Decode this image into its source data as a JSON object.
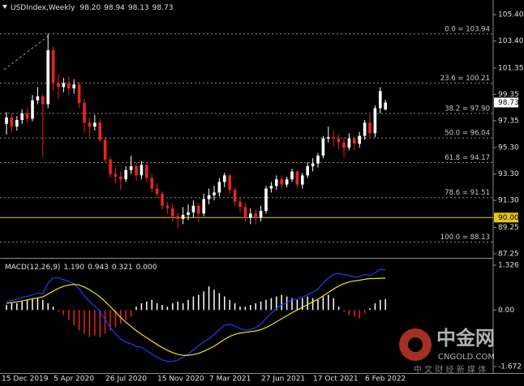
{
  "chart_data": [
    {
      "type": "candlestick",
      "symbol": "USDIndex,Weekly",
      "ohlc_labels": [
        "98.20",
        "98.94",
        "98.13",
        "98.73"
      ],
      "categories": [
        "15 Dec 2019",
        null,
        null,
        null,
        null,
        null,
        null,
        null,
        null,
        null,
        "5 Apr 2020",
        null,
        null,
        null,
        null,
        null,
        null,
        null,
        null,
        null,
        "26 Jul 2020",
        null,
        null,
        null,
        null,
        null,
        null,
        null,
        null,
        null,
        "15 Nov 2020",
        null,
        null,
        null,
        null,
        null,
        null,
        null,
        null,
        null,
        "7 Mar 2021",
        null,
        null,
        null,
        null,
        null,
        null,
        null,
        null,
        null,
        "27 Jun 2021",
        null,
        null,
        null,
        null,
        null,
        null,
        null,
        null,
        null,
        "17 Oct 2021",
        null,
        null,
        null,
        null,
        null,
        null,
        null,
        null,
        null,
        "6 Feb 2022",
        null,
        null,
        null
      ],
      "open": [
        97.1,
        97.6,
        96.9,
        97.4,
        97.9,
        97.5,
        98.9,
        99.2,
        98.6,
        102.7,
        100.2,
        99.9,
        100.2,
        99.8,
        100.1,
        98.7,
        97.2,
        96.9,
        97.2,
        95.9,
        94.4,
        93.3,
        93.1,
        92.9,
        93.6,
        93.9,
        93.2,
        94.0,
        93.0,
        92.2,
        91.8,
        90.9,
        90.7,
        90.1,
        89.9,
        90.2,
        90.4,
        90.9,
        90.3,
        91.4,
        91.7,
        91.9,
        92.7,
        93.2,
        92.1,
        91.2,
        90.8,
        90.0,
        90.3,
        90.0,
        90.5,
        92.2,
        92.4,
        92.9,
        92.5,
        92.9,
        93.5,
        92.5,
        93.2,
        93.9,
        94.1,
        94.7,
        96.0,
        96.1,
        96.0,
        95.7,
        95.3,
        96.0,
        95.6,
        96.2,
        97.2,
        96.4,
        98.3,
        98.2
      ],
      "high": [
        98.0,
        97.9,
        97.7,
        98.2,
        98.3,
        99.3,
        99.9,
        99.4,
        103.96,
        103.0,
        100.9,
        100.6,
        100.7,
        100.5,
        100.3,
        99.0,
        97.6,
        97.8,
        97.5,
        96.1,
        94.6,
        93.8,
        93.5,
        93.9,
        94.7,
        94.2,
        94.3,
        94.1,
        93.3,
        92.6,
        92.0,
        91.2,
        91.0,
        90.4,
        90.8,
        91.0,
        91.3,
        91.1,
        91.8,
        92.2,
        92.4,
        93.0,
        93.4,
        93.3,
        92.3,
        91.5,
        91.1,
        90.7,
        90.6,
        90.9,
        92.4,
        92.7,
        93.2,
        93.2,
        93.1,
        93.7,
        93.6,
        93.4,
        94.2,
        94.5,
        94.9,
        96.2,
        96.9,
        96.6,
        96.3,
        96.1,
        96.4,
        96.2,
        96.5,
        97.4,
        97.8,
        98.5,
        99.9,
        98.94
      ],
      "low": [
        96.3,
        96.5,
        96.6,
        97.1,
        97.2,
        97.3,
        98.6,
        94.6,
        98.3,
        99.6,
        99.0,
        99.5,
        99.3,
        99.4,
        98.3,
        96.4,
        96.0,
        96.6,
        95.7,
        94.2,
        93.0,
        92.6,
        92.1,
        92.7,
        93.3,
        92.8,
        92.9,
        92.7,
        91.9,
        91.5,
        90.6,
        90.3,
        89.7,
        89.2,
        89.5,
        89.8,
        90.0,
        89.7,
        90.1,
        91.0,
        91.3,
        91.6,
        92.3,
        91.8,
        90.9,
        90.4,
        89.7,
        89.5,
        89.5,
        89.7,
        90.3,
        91.9,
        92.1,
        92.2,
        92.3,
        92.7,
        92.3,
        92.2,
        93.0,
        93.5,
        93.8,
        94.5,
        95.7,
        95.4,
        95.2,
        94.6,
        95.1,
        95.1,
        95.3,
        95.9,
        96.0,
        96.1,
        97.9,
        98.13
      ],
      "close": [
        97.6,
        96.9,
        97.4,
        97.9,
        97.5,
        98.9,
        99.2,
        98.6,
        102.7,
        100.2,
        99.9,
        100.2,
        99.8,
        100.1,
        98.7,
        97.2,
        96.9,
        97.2,
        95.9,
        94.4,
        93.3,
        93.1,
        92.9,
        93.6,
        93.9,
        93.2,
        94.0,
        93.0,
        92.2,
        91.8,
        90.9,
        90.7,
        90.1,
        89.9,
        90.2,
        90.4,
        90.9,
        90.3,
        91.4,
        91.7,
        91.9,
        92.7,
        93.2,
        92.1,
        91.2,
        90.8,
        90.0,
        90.3,
        90.0,
        90.5,
        92.2,
        92.4,
        92.9,
        92.5,
        92.9,
        93.5,
        92.5,
        93.2,
        93.9,
        94.1,
        94.7,
        96.0,
        96.1,
        96.0,
        95.7,
        95.3,
        96.0,
        95.6,
        96.2,
        97.2,
        96.4,
        98.3,
        99.6,
        98.73
      ],
      "up_color": "#ffffff",
      "down_color": "#e8261d",
      "ylim": [
        86.94,
        106.51
      ],
      "yticks": [
        {
          "value": 105.4,
          "label": "105.40"
        },
        {
          "value": 103.4,
          "label": "103.40"
        },
        {
          "value": 101.35,
          "label": "101.35"
        },
        {
          "value": 99.35,
          "label": "99.35"
        },
        {
          "value": 97.35,
          "label": "97.35"
        },
        {
          "value": 95.3,
          "label": "95.30"
        },
        {
          "value": 93.3,
          "label": "93.30"
        },
        {
          "value": 91.3,
          "label": "91.30"
        },
        {
          "value": 89.25,
          "label": "89.25"
        },
        {
          "value": 87.25,
          "label": "87.25"
        }
      ],
      "fibonacci": [
        {
          "value": 103.94,
          "label": "0.0 = 103.94"
        },
        {
          "value": 100.21,
          "label": "23.6 = 100.21"
        },
        {
          "value": 97.9,
          "label": "38.2 = 97.90"
        },
        {
          "value": 96.04,
          "label": "50.0 = 96.04"
        },
        {
          "value": 94.17,
          "label": "61.8 = 94.17"
        },
        {
          "value": 91.51,
          "label": "78.6 = 91.51"
        },
        {
          "value": 88.13,
          "label": "100.0 = 88.13"
        }
      ],
      "hline": {
        "value": 90,
        "label": "90.00",
        "color": "#e6c619"
      },
      "last_price": {
        "value": 98.73,
        "label": "98.73"
      }
    },
    {
      "type": "macd",
      "title": "MACD(12,26,9)",
      "value_labels": [
        "1.190",
        "0.943",
        "0.321",
        "0.000"
      ],
      "ylim": [
        -1.864,
        1.494
      ],
      "yticks": [
        1.326,
        {
          "value": 0,
          "label": "0.00"
        },
        -1.672
      ],
      "series": [
        {
          "name": "histogram",
          "color": "#ffffff",
          "down_color": "#e8261d",
          "values": [
            0.15,
            0.2,
            0.2,
            0.25,
            0.3,
            0.35,
            0.35,
            0.3,
            0.2,
            0.1,
            -0.05,
            -0.15,
            -0.3,
            -0.45,
            -0.6,
            -0.7,
            -0.8,
            -0.75,
            -0.8,
            -0.7,
            -0.6,
            -0.5,
            -0.4,
            -0.3,
            -0.2,
            0.1,
            0.2,
            0.25,
            0.3,
            0.2,
            0.15,
            0.1,
            0.2,
            0.25,
            0.2,
            0.3,
            0.4,
            0.45,
            0.55,
            0.7,
            0.6,
            0.5,
            0.4,
            0.3,
            0.2,
            0.1,
            0.1,
            0.15,
            0.2,
            0.25,
            0.3,
            0.35,
            0.4,
            0.45,
            0.4,
            0.35,
            0.3,
            0.35,
            0.4,
            0.35,
            0.3,
            0.4,
            0.45,
            0.35,
            0.1,
            -0.05,
            -0.15,
            -0.2,
            -0.25,
            -0.1,
            0.05,
            0.2,
            0.3,
            0.321
          ]
        },
        {
          "name": "macd",
          "color": "#1e3cff",
          "values": [
            0.25,
            0.28,
            0.32,
            0.38,
            0.4,
            0.45,
            0.5,
            0.48,
            0.8,
            0.95,
            0.95,
            0.9,
            0.85,
            0.78,
            0.62,
            0.42,
            0.25,
            0.12,
            -0.05,
            -0.28,
            -0.52,
            -0.7,
            -0.86,
            -0.95,
            -1.0,
            -1.08,
            -1.1,
            -1.2,
            -1.3,
            -1.4,
            -1.47,
            -1.52,
            -1.52,
            -1.48,
            -1.4,
            -1.3,
            -1.18,
            -1.05,
            -0.95,
            -0.85,
            -0.72,
            -0.58,
            -0.45,
            -0.42,
            -0.48,
            -0.55,
            -0.6,
            -0.58,
            -0.52,
            -0.42,
            -0.25,
            -0.1,
            0.05,
            0.15,
            0.22,
            0.3,
            0.32,
            0.38,
            0.45,
            0.52,
            0.62,
            0.8,
            0.95,
            1.05,
            1.08,
            1.05,
            1.02,
            0.98,
            0.98,
            1.05,
            1.02,
            1.1,
            1.2,
            1.19
          ]
        },
        {
          "name": "signal",
          "color": "#f0e020",
          "values": [
            0.2,
            0.22,
            0.24,
            0.27,
            0.3,
            0.33,
            0.36,
            0.39,
            0.47,
            0.56,
            0.64,
            0.7,
            0.74,
            0.76,
            0.74,
            0.68,
            0.6,
            0.5,
            0.39,
            0.25,
            0.1,
            -0.06,
            -0.22,
            -0.36,
            -0.49,
            -0.61,
            -0.72,
            -0.82,
            -0.92,
            -1.02,
            -1.11,
            -1.19,
            -1.26,
            -1.31,
            -1.34,
            -1.34,
            -1.32,
            -1.28,
            -1.22,
            -1.15,
            -1.07,
            -0.97,
            -0.87,
            -0.78,
            -0.72,
            -0.68,
            -0.66,
            -0.64,
            -0.62,
            -0.58,
            -0.52,
            -0.44,
            -0.35,
            -0.26,
            -0.17,
            -0.08,
            0.0,
            0.08,
            0.16,
            0.24,
            0.32,
            0.42,
            0.52,
            0.62,
            0.71,
            0.78,
            0.83,
            0.86,
            0.88,
            0.91,
            0.93,
            0.93,
            0.94,
            0.943
          ]
        }
      ]
    }
  ],
  "watermark": {
    "brand": "中金网",
    "site": "CNGOLD.COM",
    "tagline": "中 文 财 经 新 媒 体"
  }
}
